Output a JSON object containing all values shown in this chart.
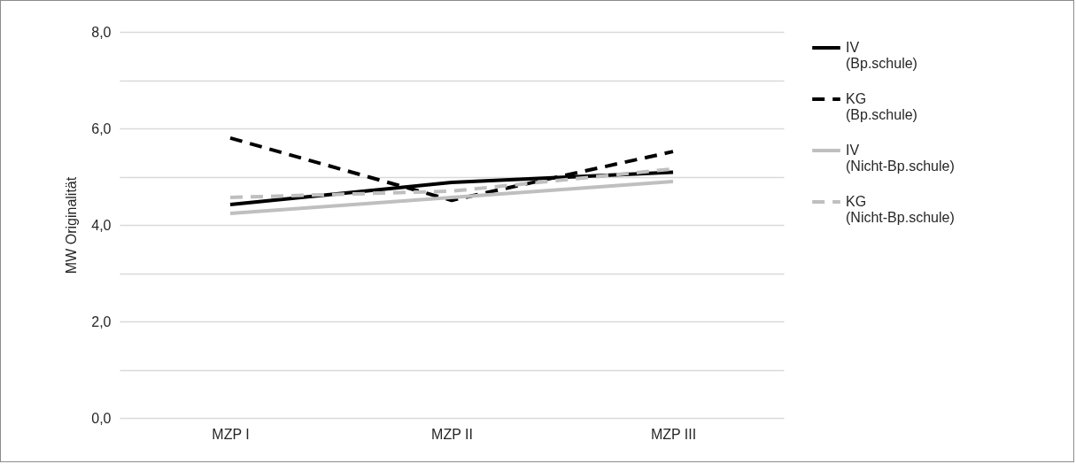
{
  "chart_data": {
    "type": "line",
    "ylabel": "MW Originalität",
    "categories": [
      "MZP I",
      "MZP II",
      "MZP III"
    ],
    "series": [
      {
        "name": "IV (Bp.schule)",
        "color": "#000000",
        "line_style": "solid",
        "values": [
          4.42,
          4.88,
          5.09
        ]
      },
      {
        "name": "KG (Bp.schule)",
        "color": "#000000",
        "line_style": "dashed",
        "values": [
          5.8,
          4.51,
          5.52
        ]
      },
      {
        "name": "IV (Nicht-Bp.schule)",
        "color": "#bfbfbf",
        "line_style": "solid",
        "values": [
          4.24,
          4.57,
          4.9
        ]
      },
      {
        "name": "KG (Nicht-Bp.schule)",
        "color": "#bfbfbf",
        "line_style": "dashed",
        "values": [
          4.57,
          4.7,
          5.16
        ]
      }
    ],
    "ylim": [
      0,
      8
    ],
    "yticks": [
      {
        "value": 0,
        "label": "0,0"
      },
      {
        "value": 1,
        "label": null
      },
      {
        "value": 2,
        "label": "2,0"
      },
      {
        "value": 3,
        "label": null
      },
      {
        "value": 4,
        "label": "4,0"
      },
      {
        "value": 5,
        "label": null
      },
      {
        "value": 6,
        "label": "6,0"
      },
      {
        "value": 7,
        "label": null
      },
      {
        "value": 8,
        "label": "8,0"
      }
    ],
    "grid": true,
    "legend": "right",
    "marker": "none"
  }
}
